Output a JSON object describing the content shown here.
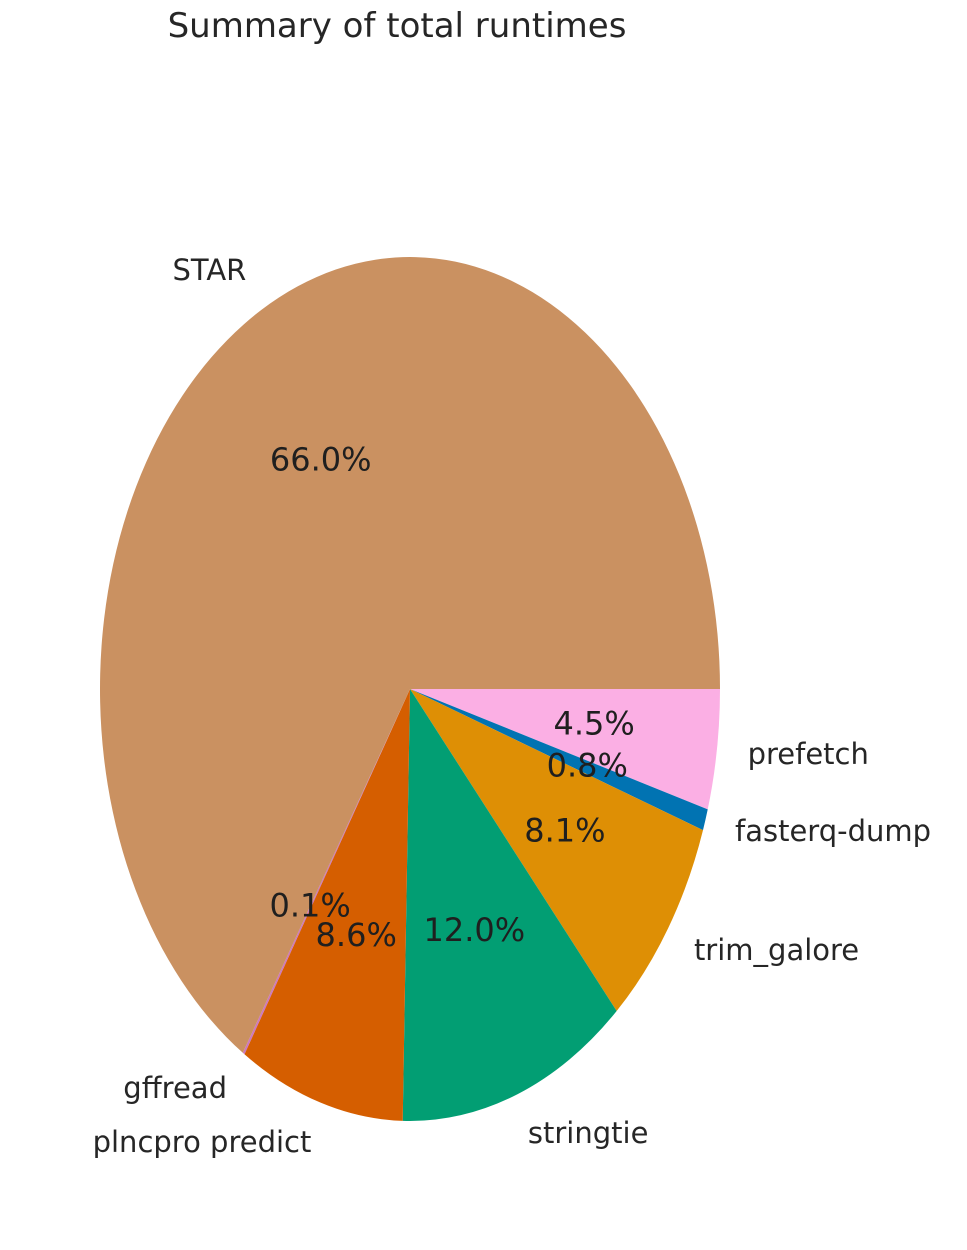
{
  "chart_data": {
    "type": "pie",
    "title": "Summary of total runtimes",
    "slices": [
      {
        "label": "prefetch",
        "value": 4.5,
        "pct_label": "4.5%",
        "color": "#fbafe4"
      },
      {
        "label": "fasterq-dump",
        "value": 0.8,
        "pct_label": "0.8%",
        "color": "#0173b2"
      },
      {
        "label": "trim_galore",
        "value": 8.1,
        "pct_label": "8.1%",
        "color": "#de8f05"
      },
      {
        "label": "stringtie",
        "value": 12.0,
        "pct_label": "12.0%",
        "color": "#029e73"
      },
      {
        "label": "plncpro predict",
        "value": 8.6,
        "pct_label": "8.6%",
        "color": "#d55e00"
      },
      {
        "label": "gffread",
        "value": 0.1,
        "pct_label": "0.1%",
        "color": "#cc78bc"
      },
      {
        "label": "STAR",
        "value": 66.0,
        "pct_label": "66.0%",
        "color": "#ca9161"
      }
    ],
    "direction": "clockwise",
    "start_angle_deg": 0,
    "legend": "none"
  }
}
